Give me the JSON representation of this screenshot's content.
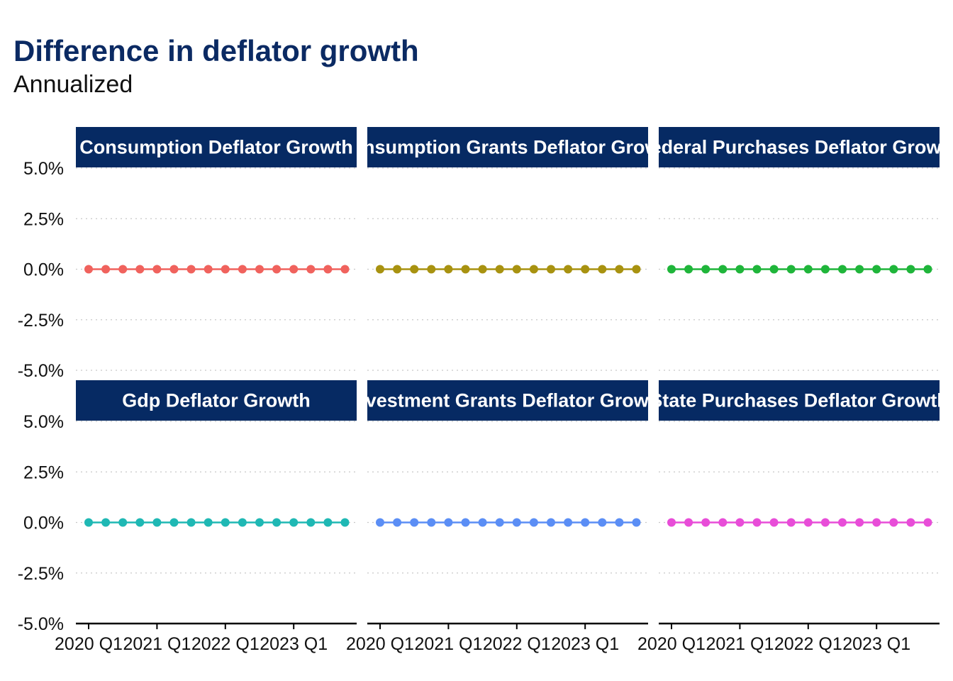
{
  "title": "Difference in deflator growth",
  "subtitle": "Annualized",
  "colors": {
    "title": "#0b2a63",
    "strip": "#062a63",
    "grid": "#c8c8c8",
    "axis": "#000000"
  },
  "chart_data": {
    "type": "line",
    "layout": "facet-grid",
    "facet_rows": 2,
    "facet_cols": 3,
    "y_ticks": [
      "5.0%",
      "2.5%",
      "0.0%",
      "-2.5%",
      "-5.0%"
    ],
    "ylim": [
      -5.0,
      5.0
    ],
    "x_ticks": [
      "2020 Q1",
      "2021 Q1",
      "2022 Q1",
      "2023 Q1"
    ],
    "x": [
      "2020 Q1",
      "2020 Q2",
      "2020 Q3",
      "2020 Q4",
      "2021 Q1",
      "2021 Q2",
      "2021 Q3",
      "2021 Q4",
      "2022 Q1",
      "2022 Q2",
      "2022 Q3",
      "2022 Q4",
      "2023 Q1",
      "2023 Q2",
      "2023 Q3",
      "2023 Q4"
    ],
    "grid": "horizontal-dotted",
    "legend": "none",
    "panels": [
      {
        "name": "Consumption Deflator Growth",
        "color": "#f0625d",
        "values": [
          0,
          0,
          0,
          0,
          0,
          0,
          0,
          0,
          0,
          0,
          0,
          0,
          0,
          0,
          0,
          0
        ]
      },
      {
        "name": "Consumption Grants Deflator Growth",
        "color": "#a89210",
        "values": [
          0,
          0,
          0,
          0,
          0,
          0,
          0,
          0,
          0,
          0,
          0,
          0,
          0,
          0,
          0,
          0
        ]
      },
      {
        "name": "Federal Purchases Deflator Growth",
        "color": "#1fb53a",
        "values": [
          0,
          0,
          0,
          0,
          0,
          0,
          0,
          0,
          0,
          0,
          0,
          0,
          0,
          0,
          0,
          0
        ]
      },
      {
        "name": "Gdp Deflator Growth",
        "color": "#1fb8b4",
        "values": [
          0,
          0,
          0,
          0,
          0,
          0,
          0,
          0,
          0,
          0,
          0,
          0,
          0,
          0,
          0,
          0
        ]
      },
      {
        "name": "Investment Grants Deflator Growth",
        "color": "#5b8ef5",
        "values": [
          0,
          0,
          0,
          0,
          0,
          0,
          0,
          0,
          0,
          0,
          0,
          0,
          0,
          0,
          0,
          0
        ]
      },
      {
        "name": "State Purchases Deflator Growth",
        "color": "#e84dd8",
        "values": [
          0,
          0,
          0,
          0,
          0,
          0,
          0,
          0,
          0,
          0,
          0,
          0,
          0,
          0,
          0,
          0
        ]
      }
    ]
  }
}
